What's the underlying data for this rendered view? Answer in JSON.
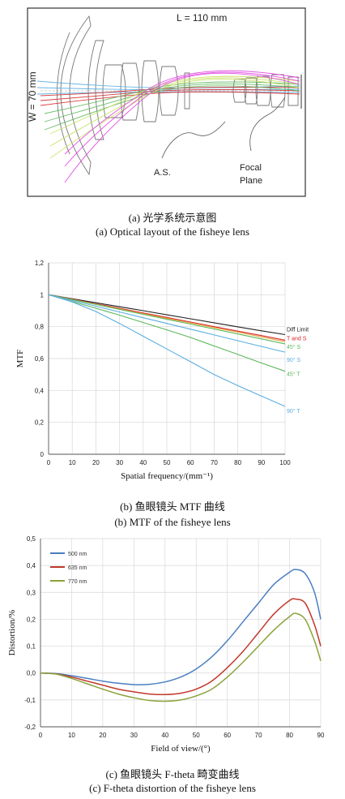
{
  "captions": {
    "a_cn": "(a)  光学系统示意图",
    "a_en": "(a) Optical layout of the fisheye lens",
    "b_cn": "(b)  鱼眼镜头 MTF 曲线",
    "b_en": "(b) MTF of the fisheye lens",
    "c_cn": "(c)  鱼眼镜头 F-theta 畸变曲线",
    "c_en": "(c) F-theta distortion of the fisheye lens"
  },
  "layout_labels": {
    "length": "L = 110 mm",
    "width": "W = 70 mm",
    "aperture_stop": "A.S.",
    "focal_plane_line1": "Focal",
    "focal_plane_line2": "Plane"
  },
  "colors": {
    "black": "#222222",
    "red": "#d62728",
    "orange": "#e8a040",
    "green": "#5cb85c",
    "lightblue": "#5aaee0",
    "blue": "#4a7fc0",
    "darkred": "#c0392b",
    "olive": "#8aa23a",
    "magenta": "#e040e0",
    "yellowgreen": "#c8e060"
  },
  "chart_data": [
    {
      "type": "line",
      "title": "",
      "xlabel": "Spatial frequency/(mm⁻¹)",
      "ylabel": "MTF",
      "xlim": [
        0,
        100
      ],
      "ylim": [
        0,
        1.2
      ],
      "xticks": [
        "0",
        "10",
        "20",
        "30",
        "40",
        "50",
        "60",
        "70",
        "80",
        "90",
        "100"
      ],
      "yticks": [
        "0",
        "0,2",
        "0,4",
        "0,6",
        "0,8",
        "1",
        "1,2"
      ],
      "grid": true,
      "legend": "inline-right",
      "x": [
        0,
        10,
        20,
        30,
        40,
        50,
        60,
        70,
        80,
        90,
        100
      ],
      "series": [
        {
          "name": "Diff Limit",
          "color": "#222222",
          "values": [
            1.0,
            0.975,
            0.95,
            0.925,
            0.9,
            0.874,
            0.849,
            0.824,
            0.799,
            0.774,
            0.75
          ]
        },
        {
          "name": "T and S",
          "color": "#d62728",
          "values": [
            1.0,
            0.972,
            0.943,
            0.915,
            0.886,
            0.858,
            0.829,
            0.8,
            0.772,
            0.744,
            0.715
          ]
        },
        {
          "name": "",
          "color": "#e8a040",
          "values": [
            1.0,
            0.97,
            0.94,
            0.911,
            0.881,
            0.852,
            0.823,
            0.794,
            0.765,
            0.736,
            0.706
          ]
        },
        {
          "name": "45° S",
          "color": "#5cb85c",
          "values": [
            1.0,
            0.969,
            0.939,
            0.908,
            0.877,
            0.846,
            0.816,
            0.785,
            0.754,
            0.723,
            0.692
          ]
        },
        {
          "name": "90° S",
          "color": "#5aaee0",
          "values": [
            1.0,
            0.964,
            0.928,
            0.892,
            0.856,
            0.82,
            0.784,
            0.748,
            0.712,
            0.676,
            0.64
          ]
        },
        {
          "name": "45° T",
          "color": "#5cb85c",
          "values": [
            1.0,
            0.958,
            0.915,
            0.872,
            0.826,
            0.78,
            0.732,
            0.679,
            0.626,
            0.572,
            0.52
          ]
        },
        {
          "name": "90° T",
          "color": "#5aaee0",
          "values": [
            1.0,
            0.955,
            0.895,
            0.82,
            0.74,
            0.66,
            0.58,
            0.5,
            0.43,
            0.365,
            0.3
          ]
        }
      ]
    },
    {
      "type": "line",
      "title": "",
      "xlabel": "Field of view/(°)",
      "ylabel": "Distortion/%",
      "xlim": [
        0,
        90
      ],
      "ylim": [
        -0.2,
        0.5
      ],
      "xticks": [
        "0",
        "10",
        "20",
        "30",
        "40",
        "50",
        "60",
        "70",
        "80",
        "90"
      ],
      "yticks": [
        "-0,2",
        "-0,1",
        "0,0",
        "0,1",
        "0,2",
        "0,3",
        "0,4",
        "0,5"
      ],
      "grid": true,
      "legend": "top-left",
      "x": [
        0,
        5,
        10,
        15,
        20,
        25,
        30,
        35,
        40,
        45,
        50,
        55,
        60,
        65,
        70,
        75,
        80,
        82,
        85,
        88,
        90
      ],
      "series": [
        {
          "name": "500 nm",
          "color": "#4a7fc0",
          "values": [
            0.0,
            -0.002,
            -0.01,
            -0.02,
            -0.03,
            -0.038,
            -0.043,
            -0.042,
            -0.033,
            -0.015,
            0.015,
            0.06,
            0.12,
            0.19,
            0.26,
            0.33,
            0.375,
            0.385,
            0.37,
            0.3,
            0.2
          ]
        },
        {
          "name": "635 nm",
          "color": "#c0392b",
          "values": [
            0.0,
            -0.003,
            -0.015,
            -0.03,
            -0.045,
            -0.06,
            -0.07,
            -0.078,
            -0.08,
            -0.075,
            -0.06,
            -0.03,
            0.02,
            0.08,
            0.15,
            0.22,
            0.27,
            0.275,
            0.26,
            0.18,
            0.1
          ]
        },
        {
          "name": "770 nm",
          "color": "#8aa23a",
          "values": [
            0.0,
            -0.004,
            -0.02,
            -0.04,
            -0.06,
            -0.078,
            -0.092,
            -0.102,
            -0.105,
            -0.1,
            -0.085,
            -0.06,
            -0.015,
            0.04,
            0.1,
            0.16,
            0.21,
            0.222,
            0.2,
            0.12,
            0.045
          ]
        }
      ]
    }
  ]
}
